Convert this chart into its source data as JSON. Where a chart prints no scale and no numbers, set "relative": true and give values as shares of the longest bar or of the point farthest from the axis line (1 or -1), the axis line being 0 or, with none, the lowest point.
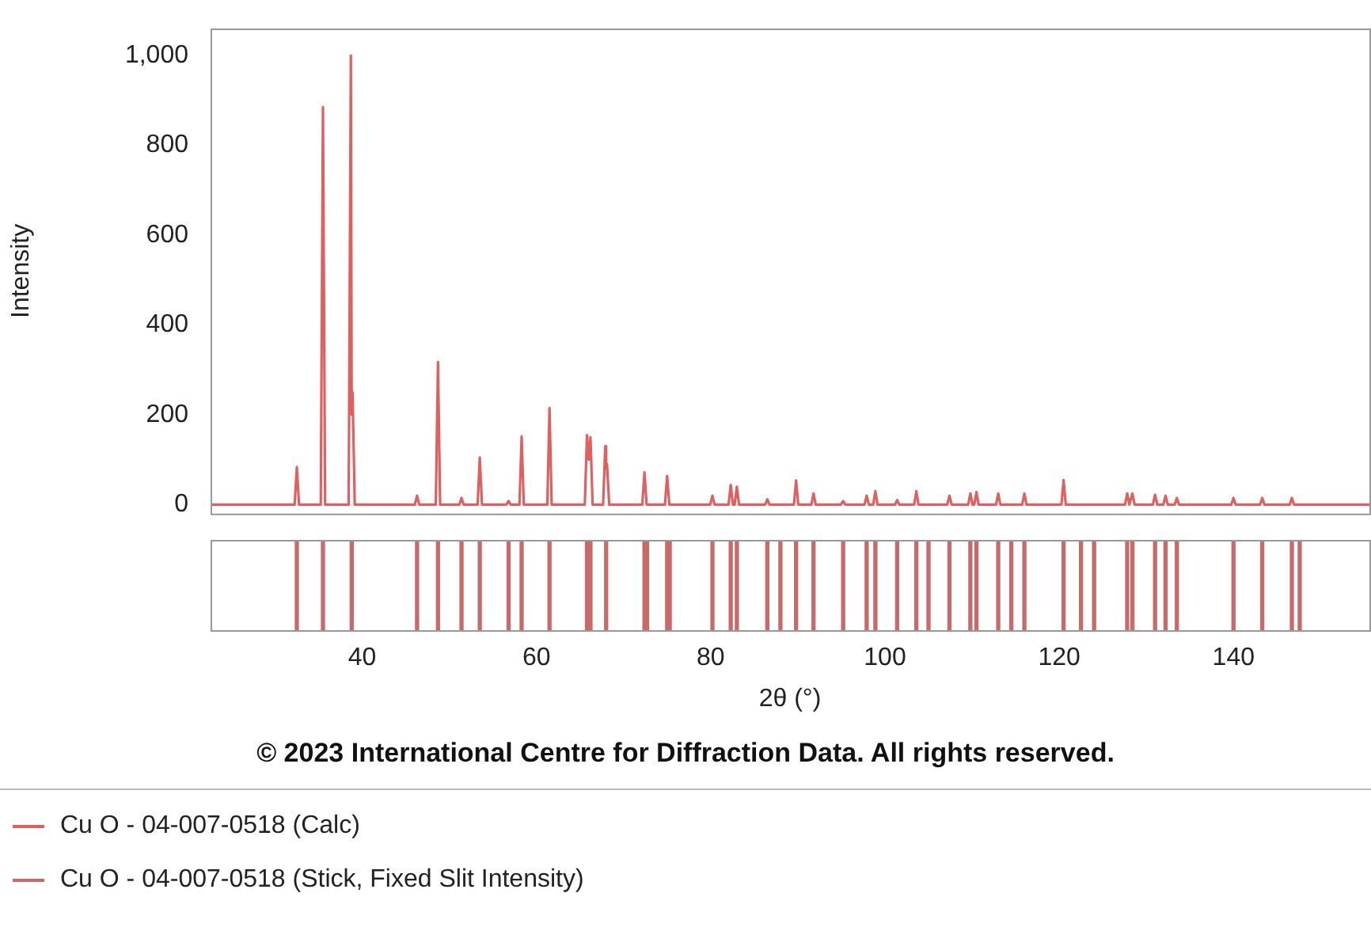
{
  "chart_data": [
    {
      "type": "line",
      "ylabel": "Intensity",
      "xlim": [
        22.6,
        155.6
      ],
      "ylim": [
        -20,
        1060
      ],
      "yticks": [
        0,
        200,
        400,
        600,
        800,
        {
          "value": 1000,
          "label": "1,000"
        }
      ],
      "grid": false,
      "tick_labels": "y",
      "legend": "bottom",
      "series": [
        {
          "name": "Cu O - 04-007-0518 (Calc)",
          "color": "#e06060",
          "x": [
            22.6,
            32.25,
            32.5,
            32.75,
            35.25,
            35.5,
            35.75,
            38.45,
            38.7,
            38.8,
            38.9,
            39.15,
            46.05,
            46.3,
            46.55,
            48.45,
            48.7,
            48.95,
            51.15,
            51.4,
            51.65,
            53.25,
            53.5,
            53.75,
            56.55,
            56.8,
            57.05,
            58.05,
            58.3,
            58.55,
            61.25,
            61.5,
            61.75,
            65.55,
            65.8,
            66.0,
            66.2,
            66.45,
            67.65,
            67.9,
            68.0,
            68.1,
            68.35,
            72.15,
            72.4,
            72.65,
            74.75,
            75.0,
            75.25,
            79.95,
            80.2,
            80.45,
            82.05,
            82.3,
            82.55,
            82.75,
            83.0,
            83.25,
            86.25,
            86.5,
            86.75,
            89.55,
            89.8,
            90.05,
            91.55,
            91.8,
            92.05,
            94.95,
            95.2,
            95.45,
            97.65,
            97.9,
            98.15,
            98.65,
            98.9,
            99.15,
            101.15,
            101.4,
            101.65,
            103.35,
            103.6,
            103.85,
            107.15,
            107.4,
            107.65,
            109.55,
            109.8,
            110.05,
            110.25,
            110.5,
            110.75,
            112.75,
            113.0,
            113.25,
            115.75,
            116.0,
            116.25,
            120.25,
            120.5,
            120.75,
            127.55,
            127.8,
            128.05,
            128.15,
            128.4,
            128.65,
            130.75,
            131.0,
            131.25,
            131.95,
            132.2,
            132.45,
            133.25,
            133.5,
            133.75,
            139.75,
            140.0,
            140.25,
            143.05,
            143.3,
            143.55,
            146.45,
            146.7,
            146.95,
            155.6
          ],
          "values": [
            0,
            0,
            84,
            0,
            0,
            885,
            0,
            0,
            1000,
            200,
            250,
            0,
            0,
            20,
            0,
            0,
            318,
            0,
            0,
            15,
            0,
            0,
            105,
            0,
            0,
            8,
            0,
            0,
            152,
            0,
            0,
            215,
            0,
            0,
            155,
            100,
            150,
            0,
            0,
            130,
            80,
            90,
            0,
            0,
            72,
            0,
            0,
            64,
            0,
            0,
            20,
            0,
            0,
            44,
            0,
            0,
            40,
            0,
            0,
            12,
            0,
            0,
            54,
            0,
            0,
            25,
            0,
            0,
            8,
            0,
            0,
            20,
            0,
            0,
            30,
            0,
            0,
            10,
            0,
            0,
            30,
            0,
            0,
            20,
            0,
            0,
            25,
            0,
            0,
            28,
            0,
            0,
            25,
            0,
            0,
            25,
            0,
            0,
            55,
            0,
            0,
            25,
            0,
            0,
            25,
            0,
            0,
            22,
            0,
            0,
            20,
            0,
            0,
            15,
            0,
            0,
            15,
            0,
            0,
            15,
            0,
            0,
            15,
            0,
            0
          ]
        }
      ]
    },
    {
      "type": "bar",
      "relative": true,
      "xlabel": "2θ (°)",
      "xlim": [
        22.6,
        155.6
      ],
      "xticks": [
        40,
        60,
        80,
        100,
        120,
        140
      ],
      "grid": false,
      "tick_labels": "x",
      "legend": "bottom",
      "annotations": [
        "© 2023 International Centre for Diffraction Data. All rights reserved."
      ],
      "series": [
        {
          "name": "Cu O - 04-007-0518 (Stick, Fixed Slit Intensity)",
          "color": "#c86a6a",
          "x": [
            32.5,
            35.5,
            38.8,
            46.3,
            48.7,
            51.4,
            53.5,
            56.8,
            58.3,
            61.5,
            65.8,
            66.2,
            68.0,
            72.4,
            72.7,
            75.0,
            75.3,
            80.2,
            82.3,
            83.0,
            86.5,
            88.0,
            89.8,
            91.8,
            95.2,
            97.9,
            98.9,
            101.4,
            103.6,
            105.0,
            107.4,
            109.8,
            110.5,
            113.0,
            114.5,
            116.0,
            120.5,
            122.5,
            124.0,
            127.8,
            128.4,
            131.0,
            132.2,
            133.5,
            140.0,
            143.3,
            146.7,
            147.6
          ],
          "values": [
            1,
            1,
            1,
            1,
            1,
            1,
            1,
            1,
            1,
            1,
            1,
            1,
            1,
            1,
            1,
            1,
            1,
            1,
            1,
            1,
            1,
            1,
            1,
            1,
            1,
            1,
            1,
            1,
            1,
            1,
            1,
            1,
            1,
            1,
            1,
            1,
            1,
            1,
            1,
            1,
            1,
            1,
            1,
            1,
            1,
            1,
            1,
            1
          ]
        }
      ]
    }
  ]
}
